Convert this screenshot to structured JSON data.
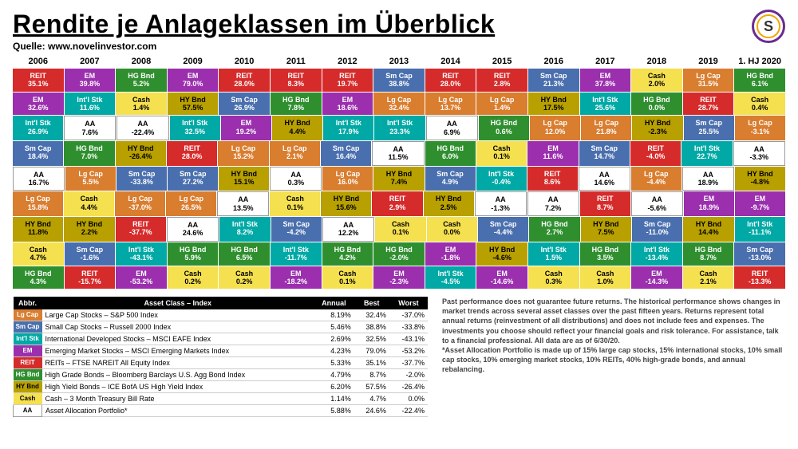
{
  "title": "Rendite je Anlageklassen im Überblick",
  "source": "Quelle: www.novelinvestor.com",
  "years": [
    "2006",
    "2007",
    "2008",
    "2009",
    "2010",
    "2011",
    "2012",
    "2013",
    "2014",
    "2015",
    "2016",
    "2017",
    "2018",
    "2019",
    "1. HJ 2020"
  ],
  "colors": {
    "LgCap": {
      "bg": "#d97d2f",
      "fg": "#ffffff"
    },
    "SmCap": {
      "bg": "#4a6fae",
      "fg": "#ffffff"
    },
    "IntlStk": {
      "bg": "#00a9a5",
      "fg": "#ffffff"
    },
    "EM": {
      "bg": "#9b2fae",
      "fg": "#ffffff"
    },
    "REIT": {
      "bg": "#d62b2b",
      "fg": "#ffffff"
    },
    "HGBnd": {
      "bg": "#2f8f2f",
      "fg": "#ffffff"
    },
    "HYBnd": {
      "bg": "#b8a000",
      "fg": "#000000"
    },
    "Cash": {
      "bg": "#f5e050",
      "fg": "#000000"
    },
    "AA": {
      "bg": "#ffffff",
      "fg": "#000000",
      "border": "1px solid #999"
    }
  },
  "quilt": [
    [
      [
        "REIT",
        "35.1%"
      ],
      [
        "EM",
        "39.8%"
      ],
      [
        "HGBnd",
        "5.2%"
      ],
      [
        "EM",
        "79.0%"
      ],
      [
        "REIT",
        "28.0%"
      ],
      [
        "REIT",
        "8.3%"
      ],
      [
        "REIT",
        "19.7%"
      ],
      [
        "SmCap",
        "38.8%"
      ],
      [
        "REIT",
        "28.0%"
      ],
      [
        "REIT",
        "2.8%"
      ],
      [
        "SmCap",
        "21.3%"
      ],
      [
        "EM",
        "37.8%"
      ],
      [
        "Cash",
        "2.0%"
      ],
      [
        "LgCap",
        "31.5%"
      ],
      [
        "HGBnd",
        "6.1%"
      ]
    ],
    [
      [
        "EM",
        "32.6%"
      ],
      [
        "IntlStk",
        "11.6%"
      ],
      [
        "Cash",
        "1.4%"
      ],
      [
        "HYBnd",
        "57.5%"
      ],
      [
        "SmCap",
        "26.9%"
      ],
      [
        "HGBnd",
        "7.8%"
      ],
      [
        "EM",
        "18.6%"
      ],
      [
        "LgCap",
        "32.4%"
      ],
      [
        "LgCap",
        "13.7%"
      ],
      [
        "LgCap",
        "1.4%"
      ],
      [
        "HYBnd",
        "17.5%"
      ],
      [
        "IntlStk",
        "25.6%"
      ],
      [
        "HGBnd",
        "0.0%"
      ],
      [
        "REIT",
        "28.7%"
      ],
      [
        "Cash",
        "0.4%"
      ]
    ],
    [
      [
        "IntlStk",
        "26.9%"
      ],
      [
        "AA",
        "7.6%"
      ],
      [
        "AA",
        "-22.4%"
      ],
      [
        "IntlStk",
        "32.5%"
      ],
      [
        "EM",
        "19.2%"
      ],
      [
        "HYBnd",
        "4.4%"
      ],
      [
        "IntlStk",
        "17.9%"
      ],
      [
        "IntlStk",
        "23.3%"
      ],
      [
        "AA",
        "6.9%"
      ],
      [
        "HGBnd",
        "0.6%"
      ],
      [
        "LgCap",
        "12.0%"
      ],
      [
        "LgCap",
        "21.8%"
      ],
      [
        "HYBnd",
        "-2.3%"
      ],
      [
        "SmCap",
        "25.5%"
      ],
      [
        "LgCap",
        "-3.1%"
      ]
    ],
    [
      [
        "SmCap",
        "18.4%"
      ],
      [
        "HGBnd",
        "7.0%"
      ],
      [
        "HYBnd",
        "-26.4%"
      ],
      [
        "REIT",
        "28.0%"
      ],
      [
        "LgCap",
        "15.2%"
      ],
      [
        "LgCap",
        "2.1%"
      ],
      [
        "SmCap",
        "16.4%"
      ],
      [
        "AA",
        "11.5%"
      ],
      [
        "HGBnd",
        "6.0%"
      ],
      [
        "Cash",
        "0.1%"
      ],
      [
        "EM",
        "11.6%"
      ],
      [
        "SmCap",
        "14.7%"
      ],
      [
        "REIT",
        "-4.0%"
      ],
      [
        "IntlStk",
        "22.7%"
      ],
      [
        "AA",
        "-3.3%"
      ]
    ],
    [
      [
        "AA",
        "16.7%"
      ],
      [
        "LgCap",
        "5.5%"
      ],
      [
        "SmCap",
        "-33.8%"
      ],
      [
        "SmCap",
        "27.2%"
      ],
      [
        "HYBnd",
        "15.1%"
      ],
      [
        "AA",
        "0.3%"
      ],
      [
        "LgCap",
        "16.0%"
      ],
      [
        "HYBnd",
        "7.4%"
      ],
      [
        "SmCap",
        "4.9%"
      ],
      [
        "IntlStk",
        "-0.4%"
      ],
      [
        "REIT",
        "8.6%"
      ],
      [
        "AA",
        "14.6%"
      ],
      [
        "LgCap",
        "-4.4%"
      ],
      [
        "AA",
        "18.9%"
      ],
      [
        "HYBnd",
        "-4.8%"
      ]
    ],
    [
      [
        "LgCap",
        "15.8%"
      ],
      [
        "Cash",
        "4.4%"
      ],
      [
        "LgCap",
        "-37.0%"
      ],
      [
        "LgCap",
        "26.5%"
      ],
      [
        "AA",
        "13.5%"
      ],
      [
        "Cash",
        "0.1%"
      ],
      [
        "HYBnd",
        "15.6%"
      ],
      [
        "REIT",
        "2.9%"
      ],
      [
        "HYBnd",
        "2.5%"
      ],
      [
        "AA",
        "-1.3%"
      ],
      [
        "AA",
        "7.2%"
      ],
      [
        "REIT",
        "8.7%"
      ],
      [
        "AA",
        "-5.6%"
      ],
      [
        "EM",
        "18.9%"
      ],
      [
        "EM",
        "-9.7%"
      ]
    ],
    [
      [
        "HYBnd",
        "11.8%"
      ],
      [
        "HYBnd",
        "2.2%"
      ],
      [
        "REIT",
        "-37.7%"
      ],
      [
        "AA",
        "24.6%"
      ],
      [
        "IntlStk",
        "8.2%"
      ],
      [
        "SmCap",
        "-4.2%"
      ],
      [
        "AA",
        "12.2%"
      ],
      [
        "Cash",
        "0.1%"
      ],
      [
        "Cash",
        "0.0%"
      ],
      [
        "SmCap",
        "-4.4%"
      ],
      [
        "HGBnd",
        "2.7%"
      ],
      [
        "HYBnd",
        "7.5%"
      ],
      [
        "SmCap",
        "-11.0%"
      ],
      [
        "HYBnd",
        "14.4%"
      ],
      [
        "IntlStk",
        "-11.1%"
      ]
    ],
    [
      [
        "Cash",
        "4.7%"
      ],
      [
        "SmCap",
        "-1.6%"
      ],
      [
        "IntlStk",
        "-43.1%"
      ],
      [
        "HGBnd",
        "5.9%"
      ],
      [
        "HGBnd",
        "6.5%"
      ],
      [
        "IntlStk",
        "-11.7%"
      ],
      [
        "HGBnd",
        "4.2%"
      ],
      [
        "HGBnd",
        "-2.0%"
      ],
      [
        "EM",
        "-1.8%"
      ],
      [
        "HYBnd",
        "-4.6%"
      ],
      [
        "IntlStk",
        "1.5%"
      ],
      [
        "HGBnd",
        "3.5%"
      ],
      [
        "IntlStk",
        "-13.4%"
      ],
      [
        "HGBnd",
        "8.7%"
      ],
      [
        "SmCap",
        "-13.0%"
      ]
    ],
    [
      [
        "HGBnd",
        "4.3%"
      ],
      [
        "REIT",
        "-15.7%"
      ],
      [
        "EM",
        "-53.2%"
      ],
      [
        "Cash",
        "0.2%"
      ],
      [
        "Cash",
        "0.2%"
      ],
      [
        "EM",
        "-18.2%"
      ],
      [
        "Cash",
        "0.1%"
      ],
      [
        "EM",
        "-2.3%"
      ],
      [
        "IntlStk",
        "-4.5%"
      ],
      [
        "EM",
        "-14.6%"
      ],
      [
        "Cash",
        "0.3%"
      ],
      [
        "Cash",
        "1.0%"
      ],
      [
        "EM",
        "-14.3%"
      ],
      [
        "Cash",
        "2.1%"
      ],
      [
        "REIT",
        "-13.3%"
      ]
    ]
  ],
  "legend": {
    "headers": [
      "Abbr.",
      "Asset Class – Index",
      "Annual",
      "Best",
      "Worst"
    ],
    "rows": [
      {
        "abbr": "Lg Cap",
        "color": "LgCap",
        "name": "Large Cap Stocks – S&P 500 Index",
        "annual": "8.19%",
        "best": "32.4%",
        "worst": "-37.0%"
      },
      {
        "abbr": "Sm Cap",
        "color": "SmCap",
        "name": "Small Cap Stocks – Russell 2000 Index",
        "annual": "5.46%",
        "best": "38.8%",
        "worst": "-33.8%"
      },
      {
        "abbr": "Int'l Stk",
        "color": "IntlStk",
        "name": "International Developed Stocks – MSCI EAFE Index",
        "annual": "2.69%",
        "best": "32.5%",
        "worst": "-43.1%"
      },
      {
        "abbr": "EM",
        "color": "EM",
        "name": "Emerging Market Stocks – MSCI Emerging Markets Index",
        "annual": "4.23%",
        "best": "79.0%",
        "worst": "-53.2%"
      },
      {
        "abbr": "REIT",
        "color": "REIT",
        "name": "REITs – FTSE NAREIT All Equity Index",
        "annual": "5.33%",
        "best": "35.1%",
        "worst": "-37.7%"
      },
      {
        "abbr": "HG Bnd",
        "color": "HGBnd",
        "name": "High Grade Bonds – Bloomberg Barclays U.S. Agg Bond Index",
        "annual": "4.79%",
        "best": "8.7%",
        "worst": "-2.0%"
      },
      {
        "abbr": "HY Bnd",
        "color": "HYBnd",
        "name": "High Yield Bonds – ICE BofA US High Yield Index",
        "annual": "6.20%",
        "best": "57.5%",
        "worst": "-26.4%"
      },
      {
        "abbr": "Cash",
        "color": "Cash",
        "name": "Cash – 3 Month Treasury Bill Rate",
        "annual": "1.14%",
        "best": "4.7%",
        "worst": "0.0%"
      },
      {
        "abbr": "AA",
        "color": "AA",
        "name": "Asset Allocation Portfolio*",
        "annual": "5.88%",
        "best": "24.6%",
        "worst": "-22.4%"
      }
    ]
  },
  "labelMap": {
    "LgCap": "Lg Cap",
    "SmCap": "Sm Cap",
    "IntlStk": "Int'l Stk",
    "EM": "EM",
    "REIT": "REIT",
    "HGBnd": "HG Bnd",
    "HYBnd": "HY Bnd",
    "Cash": "Cash",
    "AA": "AA"
  },
  "disclaimer": "Past performance does not guarantee future returns. The historical performance shows changes in market trends across several asset classes over the past fifteen years. Returns represent total annual returns (reinvestment of all distributions) and does not include fees and expenses. The investments you choose should reflect your financial goals and risk tolerance. For assistance, talk to a financial professional. All data are as of 6/30/20.\n*Asset Allocation Portfolio is made up of 15% large cap stocks, 15% international stocks, 10% small cap stocks, 10% emerging market stocks, 10% REITs, 40% high-grade bonds, and annual rebalancing."
}
